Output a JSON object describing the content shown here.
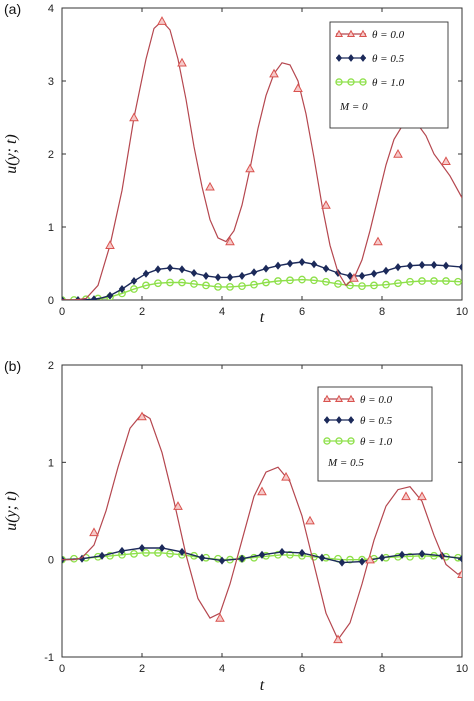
{
  "colors": {
    "series_0": "#b5474f",
    "series_0_marker": "#d9534f",
    "series_1": "#1c2a5a",
    "series_2": "#8ee04a",
    "axis": "#333333"
  },
  "chart_data": [
    {
      "type": "line",
      "panel_label": "(a)",
      "xlabel": "t",
      "ylabel": "u(y; t)",
      "xlim": [
        0,
        10
      ],
      "ylim": [
        0,
        4
      ],
      "xticks": [
        "0",
        "2",
        "4",
        "6",
        "8",
        "10"
      ],
      "yticks": [
        "0",
        "1",
        "2",
        "3",
        "4"
      ],
      "legend_position": "top-right",
      "legend_note": "M = 0",
      "series": [
        {
          "name": "θ = 0.0",
          "marker": "triangle",
          "x": [
            0,
            0.3,
            0.6,
            0.9,
            1.2,
            1.5,
            1.8,
            2.1,
            2.3,
            2.5,
            2.7,
            2.9,
            3.1,
            3.3,
            3.5,
            3.7,
            3.9,
            4.1,
            4.3,
            4.5,
            4.7,
            4.9,
            5.1,
            5.3,
            5.5,
            5.7,
            5.9,
            6.1,
            6.3,
            6.5,
            6.7,
            6.9,
            7.1,
            7.3,
            7.5,
            7.7,
            7.9,
            8.1,
            8.3,
            8.5,
            8.7,
            8.9,
            9.1,
            9.3,
            9.5,
            9.7,
            10.0
          ],
          "y": [
            0,
            0,
            0.02,
            0.2,
            0.75,
            1.5,
            2.5,
            3.3,
            3.72,
            3.82,
            3.7,
            3.3,
            2.75,
            2.1,
            1.55,
            1.1,
            0.85,
            0.8,
            0.95,
            1.3,
            1.8,
            2.35,
            2.8,
            3.1,
            3.25,
            3.22,
            3.0,
            2.55,
            1.95,
            1.3,
            0.75,
            0.38,
            0.2,
            0.3,
            0.55,
            0.95,
            1.4,
            1.85,
            2.2,
            2.38,
            2.42,
            2.4,
            2.25,
            2.0,
            1.85,
            1.7,
            1.4
          ],
          "marker_x": [
            1.2,
            1.8,
            2.5,
            3.0,
            3.7,
            4.2,
            4.7,
            5.3,
            5.9,
            6.6,
            7.3,
            7.9,
            8.4,
            9.0,
            9.6
          ],
          "marker_y": [
            0.75,
            2.5,
            3.82,
            3.25,
            1.55,
            0.8,
            1.8,
            3.1,
            2.9,
            1.3,
            0.3,
            0.8,
            2.0,
            2.42,
            1.9
          ]
        },
        {
          "name": "θ = 0.5",
          "marker": "diamond",
          "x": [
            0,
            0.4,
            0.8,
            1.0,
            1.2,
            1.5,
            1.8,
            2.1,
            2.4,
            2.7,
            3.0,
            3.3,
            3.6,
            3.9,
            4.2,
            4.5,
            4.8,
            5.1,
            5.4,
            5.7,
            6.0,
            6.3,
            6.6,
            6.9,
            7.2,
            7.5,
            7.8,
            8.1,
            8.4,
            8.7,
            9.0,
            9.3,
            9.6,
            10.0
          ],
          "y": [
            0,
            0,
            0.01,
            0.03,
            0.06,
            0.15,
            0.26,
            0.36,
            0.42,
            0.44,
            0.42,
            0.37,
            0.33,
            0.31,
            0.31,
            0.33,
            0.38,
            0.43,
            0.47,
            0.5,
            0.52,
            0.49,
            0.43,
            0.37,
            0.33,
            0.33,
            0.36,
            0.4,
            0.45,
            0.47,
            0.48,
            0.48,
            0.47,
            0.45
          ],
          "marker_x": [
            0,
            0.4,
            0.8,
            1.2,
            1.5,
            1.8,
            2.1,
            2.4,
            2.7,
            3.0,
            3.3,
            3.6,
            3.9,
            4.2,
            4.5,
            4.8,
            5.1,
            5.4,
            5.7,
            6.0,
            6.3,
            6.6,
            6.9,
            7.2,
            7.5,
            7.8,
            8.1,
            8.4,
            8.7,
            9.0,
            9.3,
            9.6,
            10.0
          ],
          "marker_y": [
            0,
            0,
            0.01,
            0.06,
            0.15,
            0.26,
            0.36,
            0.42,
            0.44,
            0.42,
            0.37,
            0.33,
            0.31,
            0.31,
            0.33,
            0.38,
            0.43,
            0.47,
            0.5,
            0.52,
            0.49,
            0.43,
            0.37,
            0.33,
            0.33,
            0.36,
            0.4,
            0.45,
            0.47,
            0.48,
            0.48,
            0.47,
            0.45
          ]
        },
        {
          "name": "θ = 1.0",
          "marker": "circle",
          "x": [
            0,
            0.4,
            0.8,
            1.0,
            1.2,
            1.5,
            1.8,
            2.1,
            2.4,
            2.7,
            3.0,
            3.3,
            3.6,
            3.9,
            4.2,
            4.5,
            4.8,
            5.1,
            5.4,
            5.7,
            6.0,
            6.3,
            6.6,
            6.9,
            7.2,
            7.5,
            7.8,
            8.1,
            8.4,
            8.7,
            9.0,
            9.3,
            9.6,
            10.0
          ],
          "y": [
            0,
            0,
            0.01,
            0.02,
            0.04,
            0.09,
            0.15,
            0.2,
            0.23,
            0.24,
            0.24,
            0.22,
            0.2,
            0.18,
            0.18,
            0.19,
            0.21,
            0.24,
            0.26,
            0.27,
            0.28,
            0.27,
            0.25,
            0.22,
            0.2,
            0.19,
            0.2,
            0.21,
            0.23,
            0.25,
            0.26,
            0.26,
            0.26,
            0.25
          ],
          "marker_x": [
            0,
            0.3,
            0.6,
            0.9,
            1.2,
            1.5,
            1.8,
            2.1,
            2.4,
            2.7,
            3.0,
            3.3,
            3.6,
            3.9,
            4.2,
            4.5,
            4.8,
            5.1,
            5.4,
            5.7,
            6.0,
            6.3,
            6.6,
            6.9,
            7.2,
            7.5,
            7.8,
            8.1,
            8.4,
            8.7,
            9.0,
            9.3,
            9.6,
            9.9
          ],
          "marker_y": [
            0,
            0,
            0.01,
            0.02,
            0.04,
            0.09,
            0.15,
            0.2,
            0.23,
            0.24,
            0.24,
            0.22,
            0.2,
            0.18,
            0.18,
            0.19,
            0.21,
            0.24,
            0.26,
            0.27,
            0.28,
            0.27,
            0.25,
            0.22,
            0.2,
            0.19,
            0.2,
            0.21,
            0.23,
            0.25,
            0.26,
            0.26,
            0.26,
            0.25
          ]
        }
      ]
    },
    {
      "type": "line",
      "panel_label": "(b)",
      "xlabel": "t",
      "ylabel": "u(y; t)",
      "xlim": [
        0,
        10
      ],
      "ylim": [
        -1,
        2
      ],
      "xticks": [
        "0",
        "2",
        "4",
        "6",
        "8",
        "10"
      ],
      "yticks": [
        "-1",
        "0",
        "1",
        "2"
      ],
      "legend_position": "top-right",
      "legend_note": "M = 0.5",
      "series": [
        {
          "name": "θ = 0.0",
          "marker": "triangle",
          "x": [
            0,
            0.3,
            0.5,
            0.8,
            1.1,
            1.4,
            1.7,
            2.0,
            2.2,
            2.5,
            2.8,
            3.1,
            3.4,
            3.7,
            3.95,
            4.2,
            4.5,
            4.8,
            5.1,
            5.4,
            5.7,
            6.0,
            6.3,
            6.6,
            6.9,
            7.2,
            7.5,
            7.8,
            8.1,
            8.4,
            8.7,
            9.0,
            9.3,
            9.6,
            9.9,
            10.0
          ],
          "y": [
            0,
            0,
            0.02,
            0.15,
            0.5,
            0.95,
            1.35,
            1.5,
            1.45,
            1.1,
            0.6,
            0.05,
            -0.4,
            -0.6,
            -0.55,
            -0.25,
            0.2,
            0.65,
            0.9,
            0.95,
            0.8,
            0.45,
            -0.05,
            -0.55,
            -0.82,
            -0.65,
            -0.25,
            0.2,
            0.55,
            0.72,
            0.75,
            0.6,
            0.25,
            -0.05,
            -0.15,
            -0.12
          ],
          "marker_x": [
            0.8,
            2.0,
            2.9,
            3.95,
            5.0,
            5.6,
            6.2,
            6.9,
            7.7,
            8.6,
            9.0,
            10.0
          ],
          "marker_y": [
            0.28,
            1.47,
            0.55,
            -0.6,
            0.7,
            0.85,
            0.4,
            -0.82,
            0.0,
            0.65,
            0.65,
            -0.15
          ]
        },
        {
          "name": "θ = 0.5",
          "marker": "diamond",
          "x": [
            0,
            0.5,
            1.0,
            1.5,
            2.0,
            2.5,
            3.0,
            3.5,
            4.0,
            4.5,
            5.0,
            5.5,
            6.0,
            6.5,
            7.0,
            7.5,
            8.0,
            8.5,
            9.0,
            9.5,
            10.0
          ],
          "y": [
            0,
            0.01,
            0.04,
            0.09,
            0.12,
            0.12,
            0.08,
            0.02,
            -0.01,
            0.01,
            0.05,
            0.08,
            0.07,
            0.02,
            -0.03,
            -0.02,
            0.02,
            0.05,
            0.06,
            0.04,
            0.01
          ],
          "marker_x": [
            0,
            0.5,
            1.0,
            1.5,
            2.0,
            2.5,
            3.0,
            3.5,
            4.0,
            4.5,
            5.0,
            5.5,
            6.0,
            6.5,
            7.0,
            7.5,
            8.0,
            8.5,
            9.0,
            9.5,
            10.0
          ],
          "marker_y": [
            0,
            0.01,
            0.04,
            0.09,
            0.12,
            0.12,
            0.08,
            0.02,
            -0.01,
            0.01,
            0.05,
            0.08,
            0.07,
            0.02,
            -0.03,
            -0.02,
            0.02,
            0.05,
            0.06,
            0.04,
            0.01
          ]
        },
        {
          "name": "θ = 1.0",
          "marker": "circle",
          "x": [
            0,
            0.5,
            1.0,
            1.5,
            2.0,
            2.5,
            3.0,
            3.5,
            4.0,
            4.5,
            5.0,
            5.5,
            6.0,
            6.5,
            7.0,
            7.5,
            8.0,
            8.5,
            9.0,
            9.5,
            10.0
          ],
          "y": [
            0,
            0.01,
            0.03,
            0.05,
            0.07,
            0.07,
            0.05,
            0.02,
            0.0,
            0.01,
            0.03,
            0.05,
            0.04,
            0.02,
            0.0,
            0.0,
            0.02,
            0.03,
            0.04,
            0.03,
            0.02
          ],
          "marker_x": [
            0,
            0.3,
            0.6,
            0.9,
            1.2,
            1.5,
            1.8,
            2.1,
            2.4,
            2.7,
            3.0,
            3.3,
            3.6,
            3.9,
            4.2,
            4.5,
            4.8,
            5.1,
            5.4,
            5.7,
            6.0,
            6.3,
            6.6,
            6.9,
            7.2,
            7.5,
            7.8,
            8.1,
            8.4,
            8.7,
            9.0,
            9.3,
            9.6,
            9.9
          ],
          "marker_y": [
            0,
            0.01,
            0.02,
            0.03,
            0.04,
            0.05,
            0.06,
            0.07,
            0.07,
            0.06,
            0.05,
            0.04,
            0.02,
            0.01,
            0.0,
            0.01,
            0.02,
            0.04,
            0.05,
            0.05,
            0.04,
            0.03,
            0.02,
            0.01,
            0.0,
            0.0,
            0.01,
            0.02,
            0.03,
            0.03,
            0.04,
            0.04,
            0.03,
            0.02
          ]
        }
      ]
    }
  ]
}
